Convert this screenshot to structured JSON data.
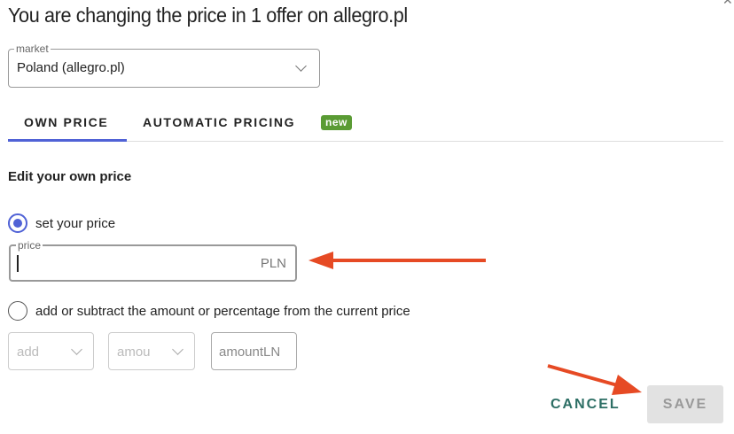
{
  "dialog": {
    "title": "You are changing the price in 1 offer on allegro.pl",
    "close_icon": "close-icon"
  },
  "market": {
    "label": "market",
    "value": "Poland (allegro.pl)"
  },
  "tabs": [
    {
      "label": "OWN PRICE",
      "active": true
    },
    {
      "label": "AUTOMATIC PRICING",
      "badge": "new"
    }
  ],
  "section": {
    "title": "Edit your own price"
  },
  "options": {
    "set_price": {
      "label": "set your price",
      "selected": true
    },
    "price_field": {
      "label": "price",
      "value": "",
      "unit": "PLN"
    },
    "adjust": {
      "label": "add or subtract the amount or percentage from the current price",
      "selected": false
    },
    "operation_select": {
      "value": "add"
    },
    "type_select": {
      "value": "amou"
    },
    "amount_field": {
      "placeholder": "amountLN"
    }
  },
  "actions": {
    "cancel": "CANCEL",
    "save": "SAVE"
  },
  "colors": {
    "accent": "#5062d6",
    "badge": "#5a9b34",
    "cancel": "#2c6e64",
    "annotation_arrow": "#e64a24"
  }
}
